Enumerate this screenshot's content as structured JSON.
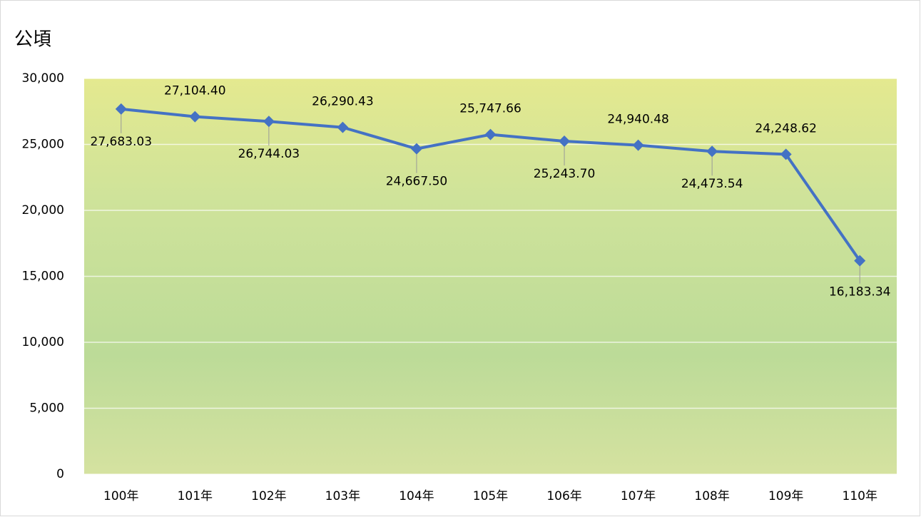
{
  "chart_data": {
    "type": "line",
    "y_axis_label": "公頃",
    "categories": [
      "100年",
      "101年",
      "102年",
      "103年",
      "104年",
      "105年",
      "106年",
      "107年",
      "108年",
      "109年",
      "110年"
    ],
    "series": [
      {
        "color": "#4472c4",
        "values": [
          27683.03,
          27104.4,
          26744.03,
          26290.43,
          24667.5,
          25747.66,
          25243.7,
          24940.48,
          24473.54,
          24248.62,
          16183.34
        ],
        "value_labels": [
          "27,683.03",
          "27,104.40",
          "26,744.03",
          "26,290.43",
          "24,667.50",
          "25,747.66",
          "25,243.70",
          "24,940.48",
          "24,473.54",
          "24,248.62",
          "16,183.34"
        ]
      }
    ],
    "ylim": [
      0,
      30000
    ],
    "yticks": [
      0,
      {
        "value": 5000,
        "label": "5,000"
      },
      {
        "value": 10000,
        "label": "10,000"
      },
      {
        "value": 15000,
        "label": "15,000"
      },
      {
        "value": 20000,
        "label": "20,000"
      },
      {
        "value": 25000,
        "label": "25,000"
      },
      {
        "value": 30000,
        "label": "30,000"
      }
    ],
    "grid": true
  }
}
